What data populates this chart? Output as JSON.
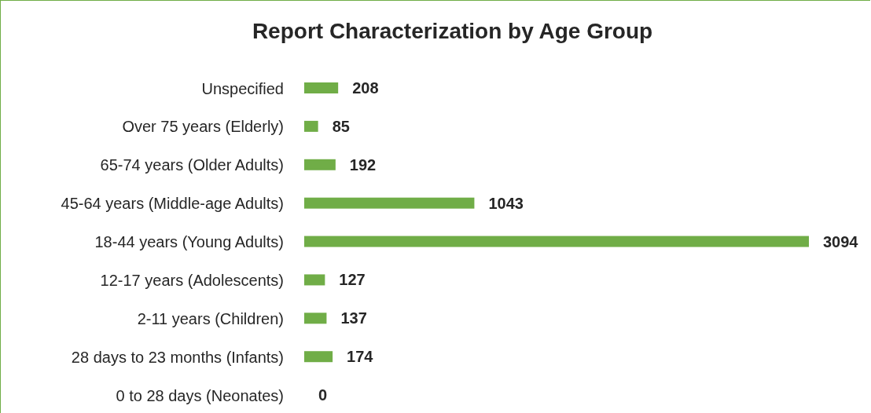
{
  "chart_data": {
    "type": "bar",
    "title": "Report Characterization by Age Group",
    "orientation": "horizontal",
    "categories": [
      "Unspecified",
      "Over 75 years (Elderly)",
      "65-74 years (Older Adults)",
      "45-64 years (Middle-age Adults)",
      "18-44 years (Young Adults)",
      "12-17 years (Adolescents)",
      "2-11 years (Children)",
      "28 days to 23 months (Infants)",
      "0 to 28 days (Neonates)"
    ],
    "values": [
      208,
      85,
      192,
      1043,
      3094,
      127,
      137,
      174,
      0
    ],
    "color": "#70ad47",
    "data_labels": true
  }
}
